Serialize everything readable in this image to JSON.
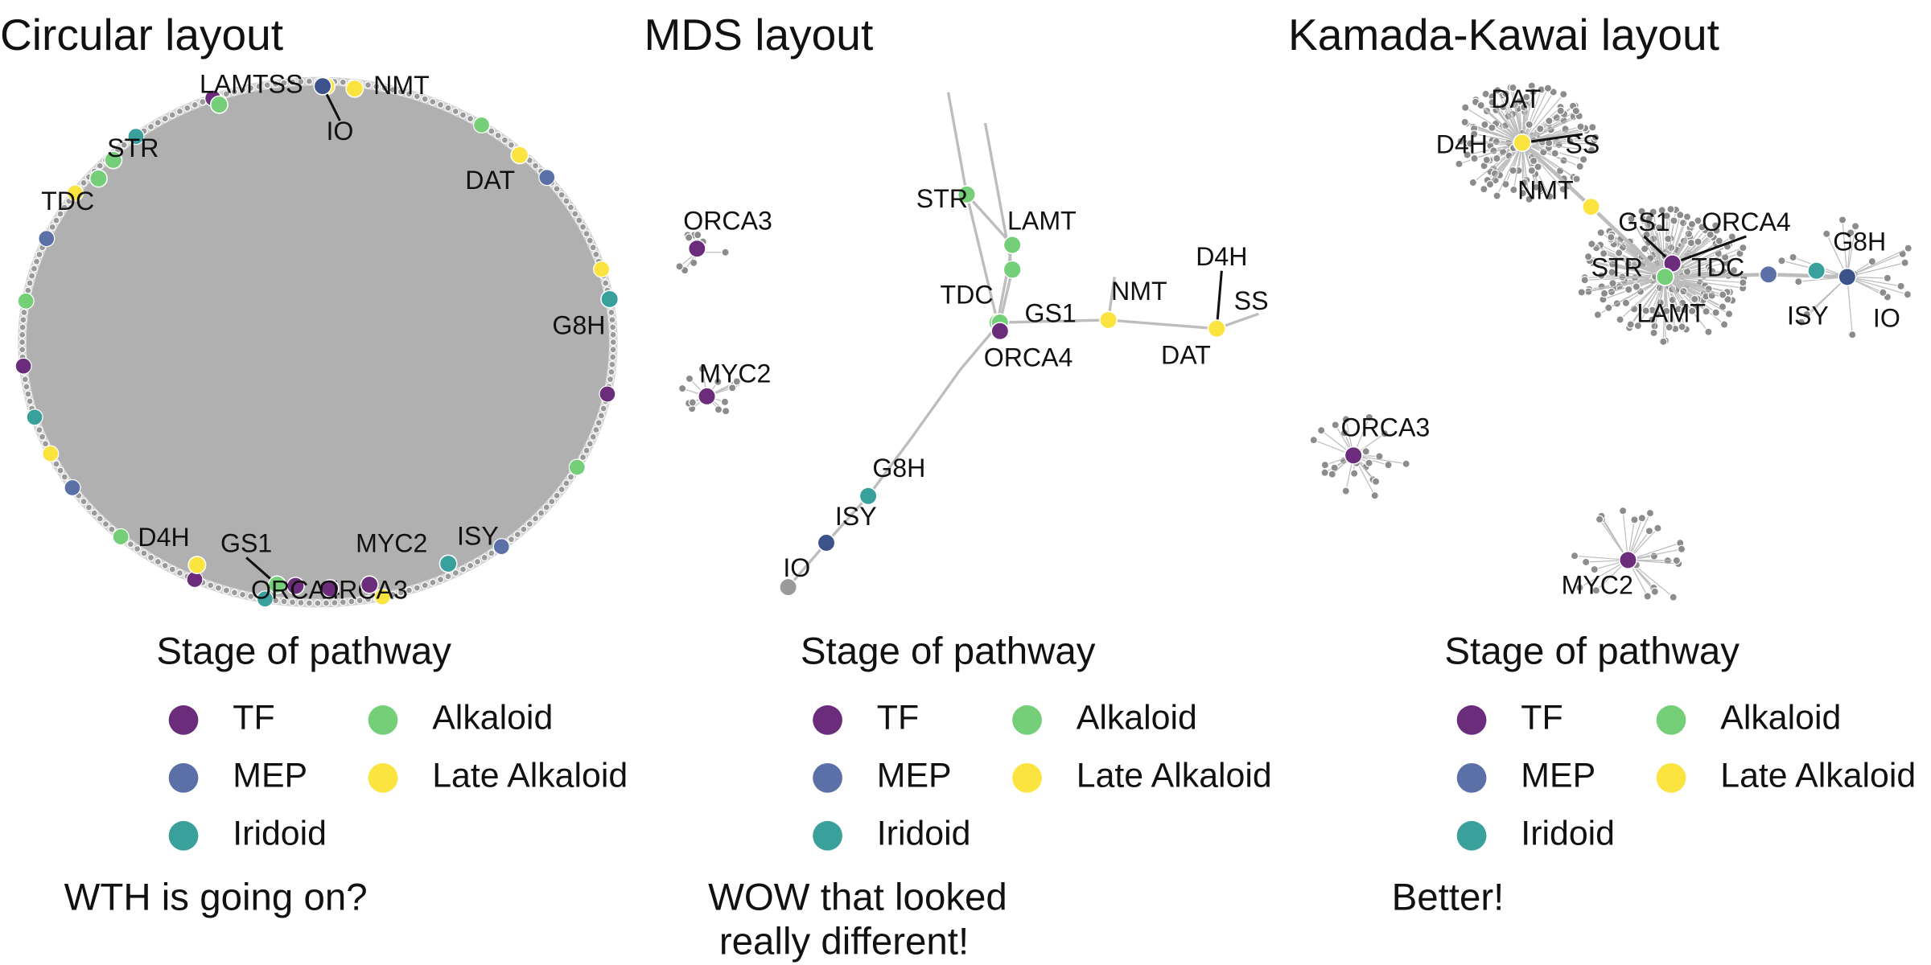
{
  "legend": {
    "title": "Stage of pathway",
    "items": [
      {
        "label": "TF",
        "color": "#6a2c7b"
      },
      {
        "label": "MEP",
        "color": "#5c70a8"
      },
      {
        "label": "Iridoid",
        "color": "#3aa09c"
      },
      {
        "label": "Alkaloid",
        "color": "#74cf78"
      },
      {
        "label": "Late Alkaloid",
        "color": "#fbe43f"
      }
    ]
  },
  "panels": [
    {
      "title": "Circular layout",
      "caption": [
        "WTH is going on?"
      ],
      "nodes": [
        {
          "label": "LAMT",
          "color": "#74cf78"
        },
        {
          "label": "SS",
          "color": "#fbe43f"
        },
        {
          "label": "NMT",
          "color": "#fbe43f"
        },
        {
          "label": "IO",
          "color": "#3b528b"
        },
        {
          "label": "STR",
          "color": "#74cf78"
        },
        {
          "label": "TDC",
          "color": "#74cf78"
        },
        {
          "label": "DAT",
          "color": "#fbe43f"
        },
        {
          "label": "G8H",
          "color": "#3aa09c"
        },
        {
          "label": "D4H",
          "color": "#fbe43f"
        },
        {
          "label": "GS1",
          "color": "#74cf78"
        },
        {
          "label": "ORCA4",
          "color": "#6a2c7b"
        },
        {
          "label": "ORCA3",
          "color": "#6a2c7b"
        },
        {
          "label": "MYC2",
          "color": "#6a2c7b"
        },
        {
          "label": "ISY",
          "color": "#3aa09c"
        }
      ]
    },
    {
      "title": "MDS layout",
      "caption": [
        "WOW that looked",
        "really different!"
      ],
      "nodes": [
        {
          "label": "STR",
          "color": "#74cf78"
        },
        {
          "label": "LAMT",
          "color": "#74cf78"
        },
        {
          "label": "TDC",
          "color": "#74cf78"
        },
        {
          "label": "GS1",
          "color": "#74cf78"
        },
        {
          "label": "ORCA4",
          "color": "#6a2c7b"
        },
        {
          "label": "NMT",
          "color": "#fbe43f"
        },
        {
          "label": "D4H",
          "color": "#fbe43f"
        },
        {
          "label": "SS",
          "color": "#fbe43f"
        },
        {
          "label": "DAT",
          "color": "#fbe43f"
        },
        {
          "label": "G8H",
          "color": "#3aa09c"
        },
        {
          "label": "ISY",
          "color": "#3b528b"
        },
        {
          "label": "IO",
          "color": "#9a9a9a"
        },
        {
          "label": "ORCA3",
          "color": "#6a2c7b"
        },
        {
          "label": "MYC2",
          "color": "#6a2c7b"
        }
      ]
    },
    {
      "title": "Kamada-Kawai layout",
      "caption": [
        "Better!"
      ],
      "nodes": [
        {
          "label": "DAT",
          "color": "#fbe43f"
        },
        {
          "label": "D4H",
          "color": "#fbe43f"
        },
        {
          "label": "SS",
          "color": "#fbe43f"
        },
        {
          "label": "NMT",
          "color": "#fbe43f"
        },
        {
          "label": "GS1",
          "color": "#74cf78"
        },
        {
          "label": "ORCA4",
          "color": "#6a2c7b"
        },
        {
          "label": "STR",
          "color": "#74cf78"
        },
        {
          "label": "TDC",
          "color": "#74cf78"
        },
        {
          "label": "LAMT",
          "color": "#74cf78"
        },
        {
          "label": "G8H",
          "color": "#3aa09c"
        },
        {
          "label": "ISY",
          "color": "#5c70a8"
        },
        {
          "label": "IO",
          "color": "#3b528b"
        },
        {
          "label": "ORCA3",
          "color": "#6a2c7b"
        },
        {
          "label": "MYC2",
          "color": "#6a2c7b"
        }
      ]
    }
  ]
}
